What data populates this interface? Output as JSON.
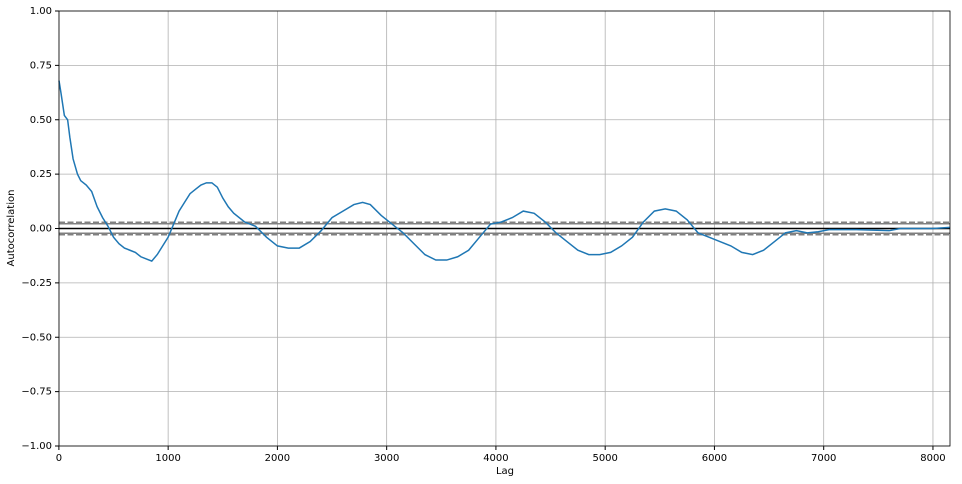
{
  "chart_data": {
    "type": "line",
    "x_label": "Lag",
    "y_label": "Autocorrelation",
    "x": [
      1,
      20,
      50,
      80,
      100,
      130,
      170,
      200,
      250,
      300,
      350,
      400,
      450,
      500,
      550,
      600,
      650,
      700,
      750,
      800,
      850,
      900,
      950,
      1000,
      1050,
      1100,
      1150,
      1200,
      1250,
      1300,
      1350,
      1400,
      1450,
      1500,
      1550,
      1600,
      1700,
      1800,
      1900,
      2000,
      2100,
      2200,
      2300,
      2400,
      2500,
      2600,
      2700,
      2780,
      2850,
      2950,
      3050,
      3150,
      3250,
      3350,
      3450,
      3550,
      3650,
      3750,
      3850,
      3950,
      4050,
      4150,
      4250,
      4350,
      4450,
      4550,
      4650,
      4750,
      4850,
      4950,
      5050,
      5150,
      5250,
      5350,
      5450,
      5550,
      5650,
      5750,
      5850,
      5950,
      6050,
      6150,
      6250,
      6350,
      6450,
      6550,
      6650,
      6750,
      6850,
      6950,
      7050,
      7300,
      7600,
      7700,
      8000,
      8155
    ],
    "series": [
      {
        "name": "autocorrelation",
        "color": "#1f77b4",
        "values": [
          0.68,
          0.62,
          0.52,
          0.5,
          0.42,
          0.32,
          0.25,
          0.22,
          0.2,
          0.17,
          0.1,
          0.05,
          0.01,
          -0.04,
          -0.07,
          -0.09,
          -0.1,
          -0.11,
          -0.13,
          -0.14,
          -0.15,
          -0.12,
          -0.08,
          -0.04,
          0.02,
          0.08,
          0.12,
          0.16,
          0.18,
          0.2,
          0.21,
          0.21,
          0.19,
          0.14,
          0.1,
          0.07,
          0.03,
          0.01,
          -0.04,
          -0.08,
          -0.09,
          -0.09,
          -0.06,
          -0.01,
          0.05,
          0.08,
          0.11,
          0.12,
          0.11,
          0.06,
          0.02,
          -0.02,
          -0.07,
          -0.12,
          -0.145,
          -0.145,
          -0.13,
          -0.1,
          -0.04,
          0.02,
          0.03,
          0.05,
          0.08,
          0.07,
          0.03,
          -0.02,
          -0.06,
          -0.1,
          -0.12,
          -0.12,
          -0.11,
          -0.08,
          -0.04,
          0.03,
          0.08,
          0.09,
          0.08,
          0.04,
          -0.02,
          -0.04,
          -0.06,
          -0.08,
          -0.11,
          -0.12,
          -0.1,
          -0.06,
          -0.02,
          -0.01,
          -0.02,
          -0.015,
          -0.005,
          -0.005,
          -0.01,
          0.0,
          0.0,
          0.005
        ]
      }
    ],
    "hlines": [
      {
        "value": 0.0285,
        "color": "#808080",
        "dashed": true
      },
      {
        "value": 0.0217,
        "color": "#808080",
        "dashed": false
      },
      {
        "value": 0,
        "color": "#000000",
        "dashed": false
      },
      {
        "value": -0.0217,
        "color": "#808080",
        "dashed": false
      },
      {
        "value": -0.0285,
        "color": "#808080",
        "dashed": true
      }
    ],
    "xlim": [
      1,
      8156
    ],
    "ylim": [
      -1,
      1
    ],
    "xticks": [
      0,
      1000,
      2000,
      3000,
      4000,
      5000,
      6000,
      7000,
      8000
    ],
    "yticks": [
      {
        "value": -1,
        "label": "−1.00"
      },
      {
        "value": -0.75,
        "label": "−0.75"
      },
      {
        "value": -0.5,
        "label": "−0.50"
      },
      {
        "value": -0.25,
        "label": "−0.25"
      },
      {
        "value": 0,
        "label": "0.00"
      },
      {
        "value": 0.25,
        "label": "0.25"
      },
      {
        "value": 0.5,
        "label": "0.50"
      },
      {
        "value": 0.75,
        "label": "0.75"
      },
      {
        "value": 1,
        "label": "1.00"
      }
    ],
    "grid": true
  }
}
